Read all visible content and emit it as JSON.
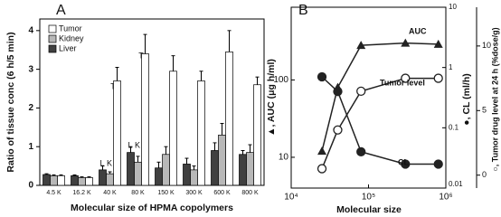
{
  "chart_data": [
    {
      "type": "bar",
      "label": "A",
      "y_label": "Ratio of tissue conc (6 h/5 min)",
      "x_label": "Molecular size of HPMA copolymers",
      "categories": [
        "4.5 K",
        "16.2 K",
        "40 K",
        "80 K",
        "150 K",
        "300 K",
        "600 K",
        "800 K"
      ],
      "series": [
        {
          "name": "Tumor",
          "color": "#ffffff",
          "values": [
            0.25,
            0.2,
            2.7,
            3.4,
            2.95,
            2.7,
            3.45,
            2.6
          ],
          "errors": [
            0.02,
            0.02,
            0.35,
            0.5,
            0.4,
            0.25,
            0.55,
            0.2
          ]
        },
        {
          "name": "Kidney",
          "color": "#b8b8b8",
          "values": [
            0.25,
            0.2,
            0.3,
            0.6,
            0.8,
            0.4,
            1.3,
            0.85
          ],
          "errors": [
            0.02,
            0.02,
            0.05,
            0.15,
            0.2,
            0.1,
            0.3,
            0.2
          ]
        },
        {
          "name": "Liver",
          "color": "#404040",
          "values": [
            0.28,
            0.25,
            0.4,
            0.85,
            0.45,
            0.55,
            0.9,
            0.8
          ],
          "errors": [
            0.02,
            0.02,
            0.1,
            0.15,
            0.15,
            0.15,
            0.2,
            0.1
          ]
        }
      ],
      "annotations": [
        "T",
        "L",
        "K",
        "T",
        "L",
        "K"
      ],
      "ylim": [
        0,
        4.3
      ],
      "yticks": [
        0,
        1,
        2,
        3,
        4
      ]
    },
    {
      "type": "line",
      "label": "B",
      "x_label": "Molecular size",
      "y_label": "▲, AUC (μg h/ml)",
      "y2_label": "●, CL (ml/h)",
      "y3_label": "○, Tumor drug level at 24 h (%dose/g)",
      "x": [
        25000,
        40000,
        80000,
        300000,
        800000
      ],
      "xlim": [
        10000,
        1000000
      ],
      "xscale": "log",
      "xticks": [
        {
          "value": 10000,
          "label": "10⁴"
        },
        {
          "value": 100000,
          "label": "10⁵"
        },
        {
          "value": 1000000,
          "label": "10⁶"
        }
      ],
      "ylim": [
        4,
        870
      ],
      "yscale": "log",
      "yticks": [
        10,
        100
      ],
      "y2lim": [
        0.01,
        10
      ],
      "y2scale": "log",
      "y2ticks": [
        0.01,
        0.1,
        1,
        10
      ],
      "y3lim": [
        -1,
        13
      ],
      "y3ticks": [
        0,
        5,
        10
      ],
      "series": [
        {
          "name": "AUC",
          "marker": "triangle",
          "color": "#222222",
          "axis": "y",
          "values": [
            12,
            80,
            280,
            300,
            290
          ]
        },
        {
          "name": "Tumor level",
          "marker": "open-circle",
          "color": "#222222",
          "axis": "y3",
          "values": [
            0.5,
            3.5,
            6.5,
            7.5,
            7.5
          ]
        },
        {
          "name": "CL",
          "marker": "filled-circle",
          "color": "#222222",
          "axis": "y2",
          "values": [
            0.7,
            0.4,
            0.04,
            0.025,
            0.025
          ]
        }
      ]
    }
  ]
}
